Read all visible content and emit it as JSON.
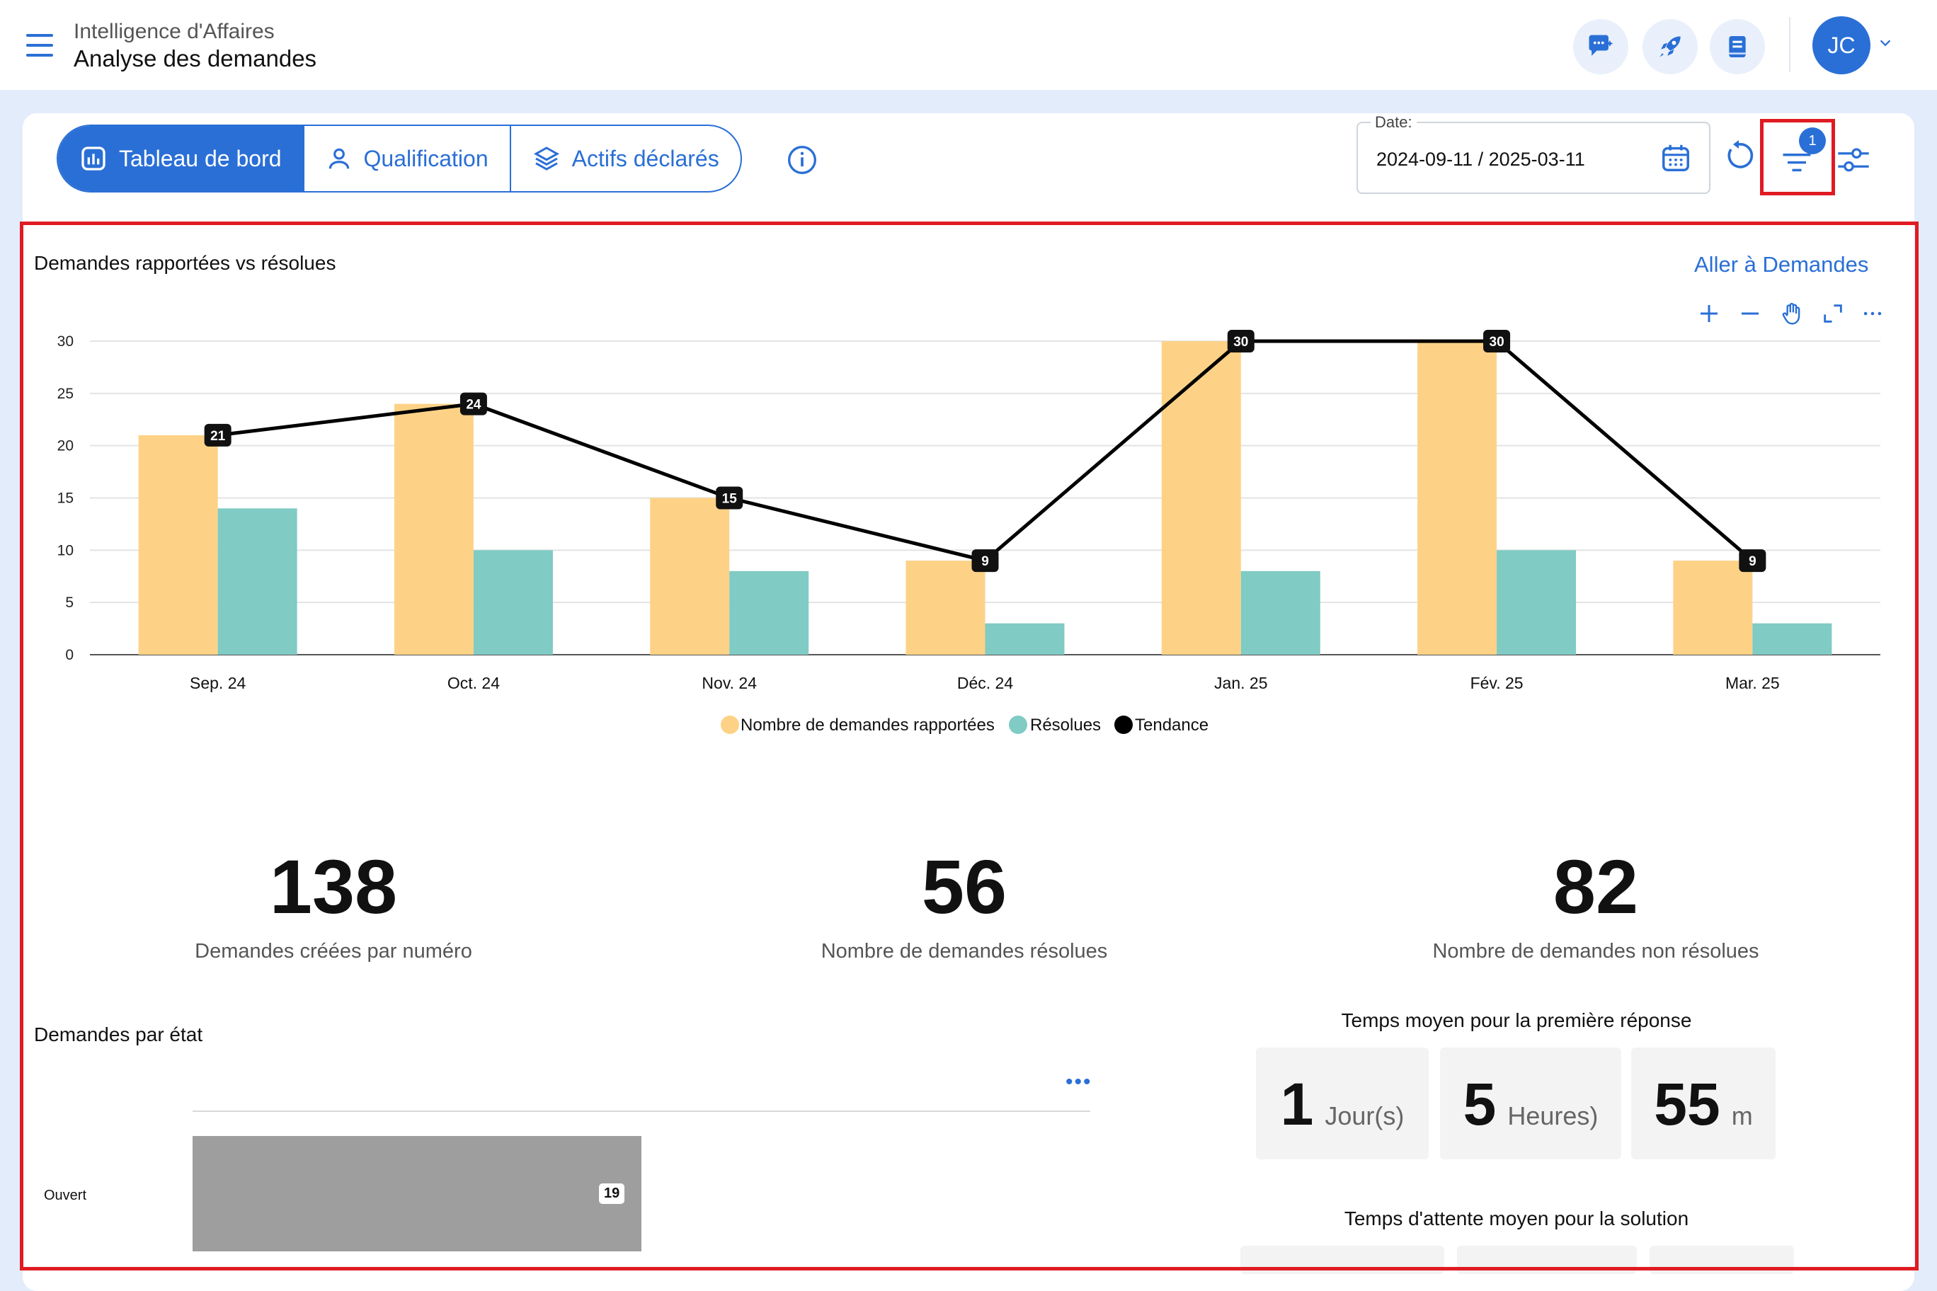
{
  "header": {
    "breadcrumb_parent": "Intelligence d'Affaires",
    "page_title": "Analyse des demandes",
    "user_initials": "JC"
  },
  "tabs": [
    {
      "label": "Tableau de bord",
      "icon": "dashboard-icon",
      "active": true
    },
    {
      "label": "Qualification",
      "icon": "user-icon",
      "active": false
    },
    {
      "label": "Actifs déclarés",
      "icon": "layers-icon",
      "active": false
    }
  ],
  "filters": {
    "date_label": "Date:",
    "date_value": "2024-09-11 / 2025-03-11",
    "active_filter_count": "1"
  },
  "trend_chart": {
    "title": "Demandes rapportées vs résolues",
    "link": "Aller à Demandes",
    "tools": [
      "zoom-in-icon",
      "zoom-out-icon",
      "pan-icon",
      "reset-zoom-icon",
      "more-icon"
    ]
  },
  "chart_data": {
    "type": "bar",
    "categories": [
      "Sep. 24",
      "Oct. 24",
      "Nov. 24",
      "Déc. 24",
      "Jan. 25",
      "Fév. 25",
      "Mar. 25"
    ],
    "series": [
      {
        "name": "Nombre de demandes rapportées",
        "type": "bar",
        "color": "#fdd287",
        "values": [
          21,
          24,
          15,
          9,
          30,
          30,
          9
        ]
      },
      {
        "name": "Résolues",
        "type": "bar",
        "color": "#80cbc4",
        "values": [
          14,
          10,
          8,
          3,
          8,
          10,
          3
        ]
      },
      {
        "name": "Tendance",
        "type": "line",
        "color": "#000000",
        "values": [
          21,
          24,
          15,
          9,
          30,
          30,
          9
        ]
      }
    ],
    "ylim": [
      0,
      30
    ],
    "yticks": [
      0,
      5,
      10,
      15,
      20,
      25,
      30
    ],
    "grid": true,
    "legend": "bottom-center"
  },
  "kpis": [
    {
      "value": "138",
      "label": "Demandes créées par numéro"
    },
    {
      "value": "56",
      "label": "Nombre de demandes résolues"
    },
    {
      "value": "82",
      "label": "Nombre de demandes non résolues"
    }
  ],
  "state_chart": {
    "title": "Demandes par état",
    "rows": [
      {
        "label": "Ouvert",
        "value": 19,
        "max": 38
      }
    ]
  },
  "first_response": {
    "title": "Temps moyen pour la première réponse",
    "parts": [
      {
        "value": "1",
        "unit": "Jour(s)"
      },
      {
        "value": "5",
        "unit": "Heures)"
      },
      {
        "value": "55",
        "unit": "m"
      }
    ]
  },
  "solution_wait": {
    "title": "Temps d'attente moyen pour la solution"
  },
  "colors": {
    "accent": "#2a6fd6",
    "highlight": "#e01b22"
  }
}
